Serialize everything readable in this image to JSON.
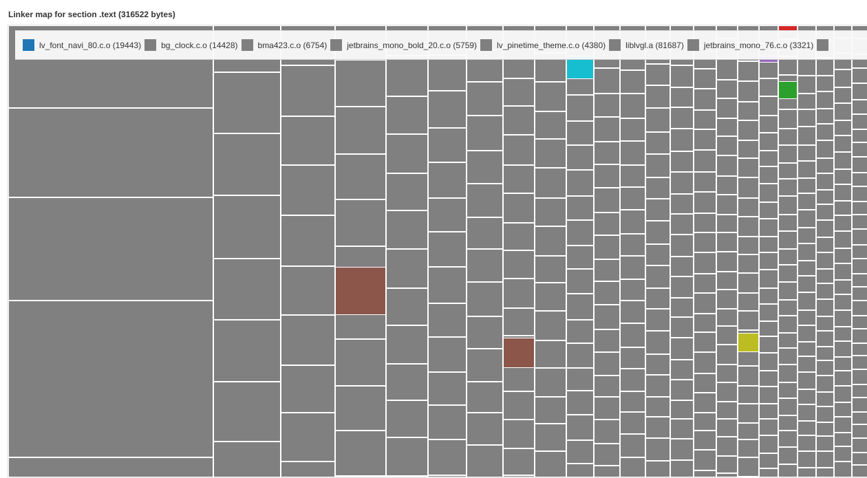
{
  "chart_data": {
    "type": "treemap",
    "title": "Linker map for section .text (316522 bytes)",
    "total_bytes": 316522,
    "legend_position": "top",
    "legend": [
      {
        "name": "lv_font_navi_80.c.o",
        "bytes": 19443,
        "color": "#1f77b4"
      },
      {
        "name": "bg_clock.c.o",
        "bytes": 14428,
        "color": "#7f7f7f"
      },
      {
        "name": "bma423.c.o",
        "bytes": 6754,
        "color": "#7f7f7f"
      },
      {
        "name": "jetbrains_mono_bold_20.c.o",
        "bytes": 5759,
        "color": "#7f7f7f"
      },
      {
        "name": "lv_pinetime_theme.c.o",
        "bytes": 4380,
        "color": "#7f7f7f"
      },
      {
        "name": "liblvgl.a",
        "bytes": 81687,
        "color": "#7f7f7f"
      },
      {
        "name": "jetbrains_mono_76.c.o",
        "bytes": 3321,
        "color": "#7f7f7f"
      },
      {
        "name": "",
        "bytes": null,
        "color": "#7f7f7f"
      }
    ],
    "highlight_colors": [
      "#8c564b",
      "#17becf",
      "#bcbd22",
      "#2ca02c",
      "#d62728",
      "#9467bd"
    ]
  }
}
